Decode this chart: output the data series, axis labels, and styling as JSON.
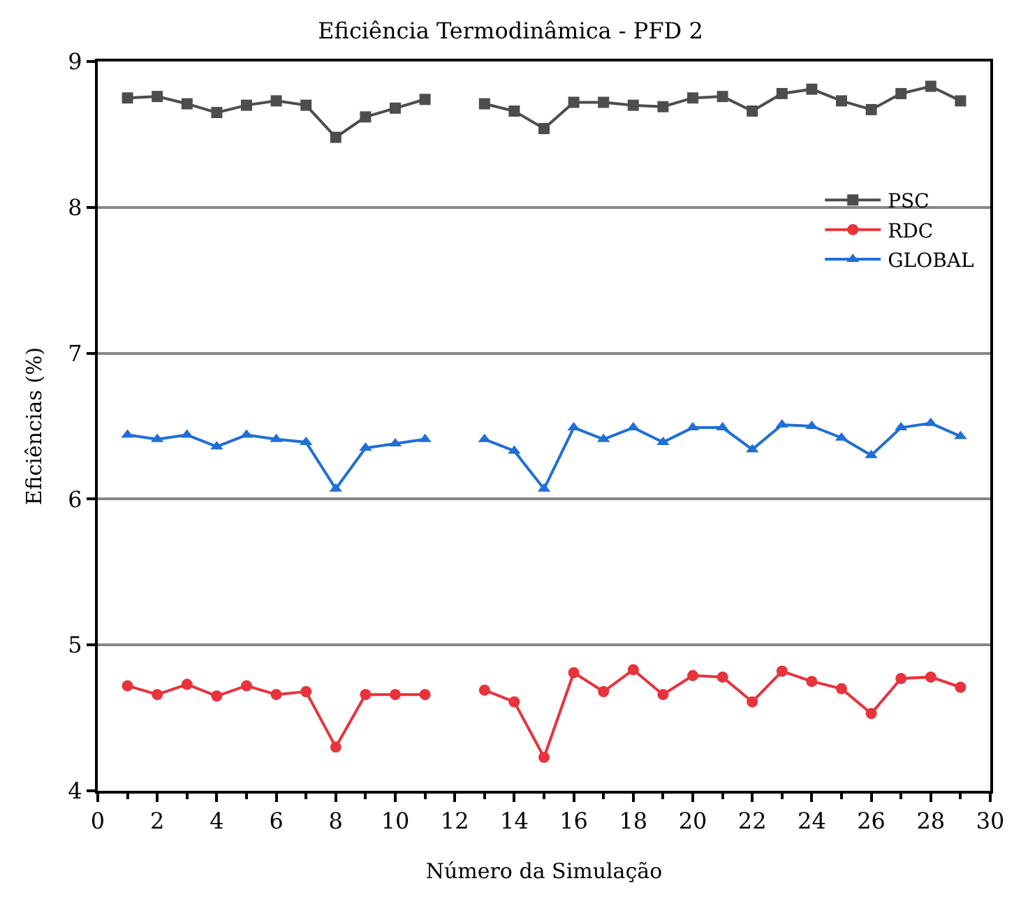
{
  "chart_data": {
    "type": "line",
    "title": "Eficiência Termodinâmica - PFD 2",
    "xlabel": "Número da Simulação",
    "ylabel": "Eficiências (%)",
    "x": [
      1,
      2,
      3,
      4,
      5,
      6,
      7,
      8,
      9,
      10,
      11,
      12,
      13,
      14,
      15,
      16,
      17,
      18,
      19,
      20,
      21,
      22,
      23,
      24,
      25,
      26,
      27,
      28,
      29
    ],
    "series": [
      {
        "name": "PSC",
        "color": "#4d4d4d",
        "marker": "square",
        "values": [
          8.75,
          8.76,
          8.71,
          8.65,
          8.7,
          8.73,
          8.7,
          8.48,
          8.62,
          8.68,
          8.74,
          null,
          8.71,
          8.66,
          8.54,
          8.72,
          8.72,
          8.7,
          8.69,
          8.75,
          8.76,
          8.66,
          8.78,
          8.81,
          8.73,
          8.67,
          8.78,
          8.83,
          8.73
        ]
      },
      {
        "name": "RDC",
        "color": "#e8333c",
        "marker": "circle",
        "values": [
          4.72,
          4.66,
          4.73,
          4.65,
          4.72,
          4.66,
          4.68,
          4.3,
          4.66,
          4.66,
          4.66,
          null,
          4.69,
          4.61,
          4.23,
          4.81,
          4.68,
          4.83,
          4.66,
          4.79,
          4.78,
          4.61,
          4.82,
          4.75,
          4.7,
          4.53,
          4.77,
          4.78,
          4.71
        ]
      },
      {
        "name": "GLOBAL",
        "color": "#1f6fd6",
        "marker": "triangle",
        "values": [
          6.44,
          6.41,
          6.44,
          6.36,
          6.44,
          6.41,
          6.39,
          6.07,
          6.35,
          6.38,
          6.41,
          null,
          6.41,
          6.33,
          6.07,
          6.49,
          6.41,
          6.49,
          6.39,
          6.49,
          6.49,
          6.34,
          6.51,
          6.5,
          6.42,
          6.3,
          6.49,
          6.52,
          6.43
        ]
      }
    ],
    "xlim": [
      0,
      30
    ],
    "xticks": [
      0,
      2,
      4,
      6,
      8,
      10,
      12,
      14,
      16,
      18,
      20,
      22,
      24,
      26,
      28,
      30
    ],
    "ylim": [
      4,
      9
    ],
    "yticks": [
      4,
      5,
      6,
      7,
      8,
      9
    ],
    "grid": "y",
    "legend": "top right",
    "line_style": "solid"
  }
}
